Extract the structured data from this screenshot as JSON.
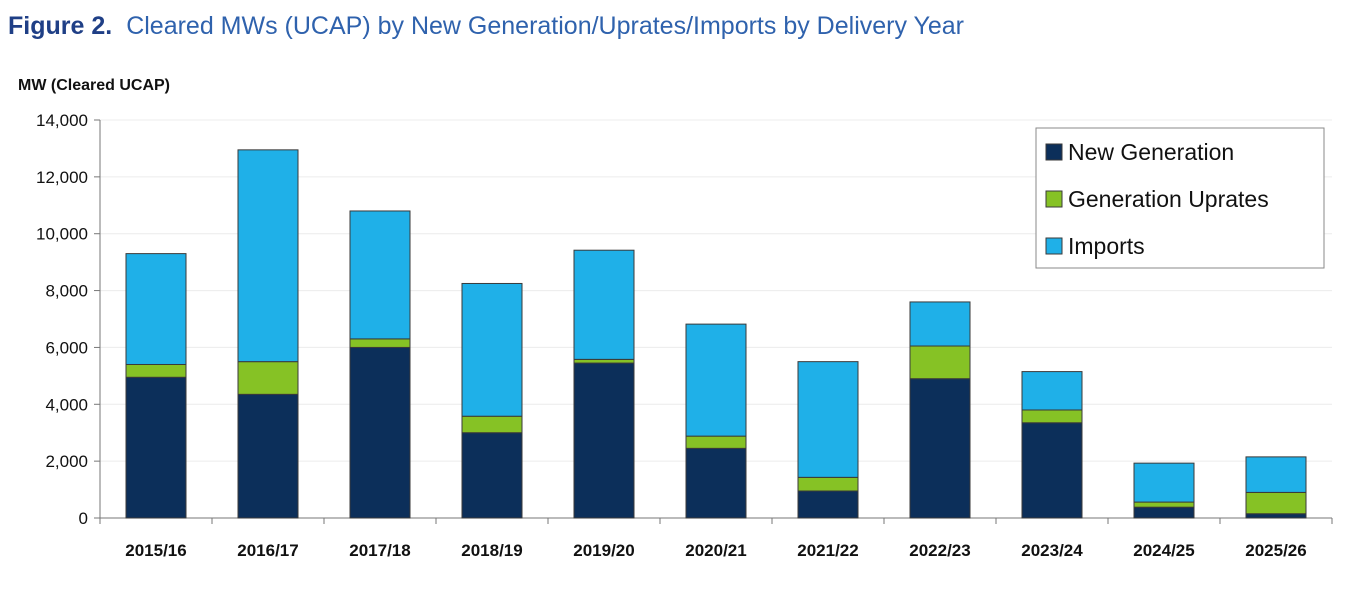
{
  "figure": {
    "number": "Figure 2.",
    "caption": "Cleared MWs (UCAP) by New Generation/Uprates/Imports by Delivery Year"
  },
  "colors": {
    "new_generation": "#0c2f5a",
    "generation_uprates": "#86c225",
    "imports": "#1fb0e8",
    "title_number": "#1f3f86",
    "title_caption": "#2f62ad"
  },
  "chart_data": {
    "type": "bar",
    "stacked": true,
    "title": "",
    "xlabel": "",
    "ylabel": "MW (Cleared UCAP)",
    "ylim": [
      0,
      14000
    ],
    "yticks": [
      0,
      2000,
      4000,
      6000,
      8000,
      10000,
      12000,
      14000
    ],
    "ytick_labels": [
      "0",
      "2,000",
      "4,000",
      "6,000",
      "8,000",
      "10,000",
      "12,000",
      "14,000"
    ],
    "grid": true,
    "legend_position": "top-right",
    "categories": [
      "2015/16",
      "2016/17",
      "2017/18",
      "2018/19",
      "2019/20",
      "2020/21",
      "2021/22",
      "2022/23",
      "2023/24",
      "2024/25",
      "2025/26"
    ],
    "series": [
      {
        "name": "New Generation",
        "color_key": "new_generation",
        "values": [
          4950,
          4350,
          6000,
          3000,
          5450,
          2450,
          950,
          4900,
          3350,
          380,
          150
        ]
      },
      {
        "name": "Generation Uprates",
        "color_key": "generation_uprates",
        "values": [
          450,
          1150,
          300,
          580,
          130,
          430,
          480,
          1150,
          450,
          180,
          750
        ]
      },
      {
        "name": "Imports",
        "color_key": "imports",
        "values": [
          3900,
          7450,
          4500,
          4670,
          3840,
          3940,
          4070,
          1550,
          1350,
          1370,
          1250
        ]
      }
    ]
  }
}
